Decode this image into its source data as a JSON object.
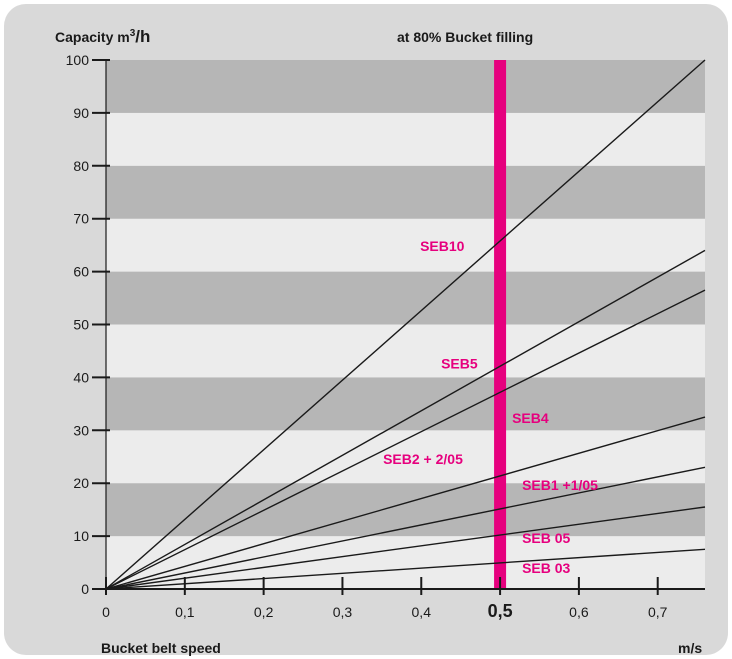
{
  "chart_data": {
    "type": "line",
    "title": "at 80% Bucket filling",
    "ylabel": {
      "text": "Capacity m",
      "sup": "3",
      "suffix": "/h"
    },
    "xlabel": "Bucket belt speed",
    "xunit": "m/s",
    "xlim": [
      0,
      0.76
    ],
    "ylim": [
      0,
      100
    ],
    "y_ticks": [
      "0",
      "10",
      "20",
      "30",
      "40",
      "50",
      "60",
      "70",
      "80",
      "90",
      "100"
    ],
    "x_ticks": [
      "0",
      "0,1",
      "0,2",
      "0,3",
      "0,4",
      "0,5",
      "0,6",
      "0,7"
    ],
    "x_tick_values": [
      0,
      0.1,
      0.2,
      0.3,
      0.4,
      0.5,
      0.6,
      0.7
    ],
    "highlight_x": 0.5,
    "highlight_label": "0,5",
    "grid": "alternating horizontal bands",
    "series": [
      {
        "name": "SEB10",
        "x": [
          0,
          0.76
        ],
        "y": [
          0,
          100
        ],
        "label_x": 0.5,
        "label_y": 65.8
      },
      {
        "name": "SEB5",
        "x": [
          0,
          0.76
        ],
        "y": [
          0,
          64
        ],
        "label_x": 0.5,
        "label_y": 42.1
      },
      {
        "name": "SEB4",
        "x": [
          0,
          0.76
        ],
        "y": [
          0,
          56.5
        ],
        "label_x": 0.5,
        "label_y": 37.2
      },
      {
        "name": "SEB2 + 2/05",
        "x": [
          0,
          0.76
        ],
        "y": [
          0,
          32.5
        ],
        "label_x": 0.5,
        "label_y": 21.4
      },
      {
        "name": "SEB1 +1/05",
        "x": [
          0,
          0.76
        ],
        "y": [
          0,
          23
        ],
        "label_x": 0.5,
        "label_y": 15.1
      },
      {
        "name": "SEB 05",
        "x": [
          0,
          0.76
        ],
        "y": [
          0,
          15.5
        ],
        "label_x": 0.5,
        "label_y": 10.2
      },
      {
        "name": "SEB 03",
        "x": [
          0,
          0.76
        ],
        "y": [
          0,
          7.5
        ],
        "label_x": 0.5,
        "label_y": 4.9
      }
    ],
    "colors": {
      "background_card": "#d9d9d9",
      "band_dark": "#b6b6b6",
      "band_light": "#ececec",
      "line": "#1a1a1a",
      "highlight": "#e6007e",
      "label": "#e6007e",
      "text": "#1a1a1a"
    }
  }
}
